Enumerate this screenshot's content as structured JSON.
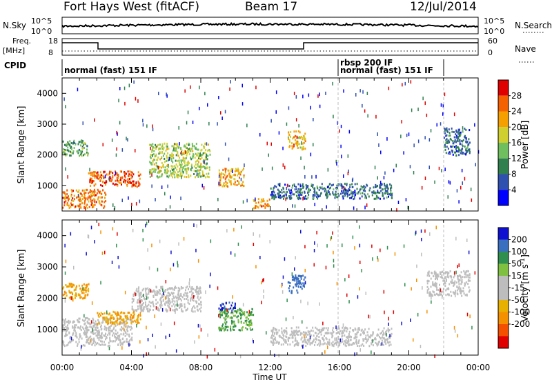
{
  "header": {
    "radar": "Fort Hays West (fitACF)",
    "beam": "Beam 17",
    "date": "12/Jul/2014"
  },
  "top_panels": {
    "nsky_label": "N.Sky",
    "nsky_ticks": [
      "10^5",
      "10^0"
    ],
    "nsearch_label": "N.Search",
    "nsearch_ticks": [
      "10^5",
      "10^0"
    ],
    "freq_label": "Freq.",
    "freq_unit": "[MHz]",
    "freq_ticks": [
      "18",
      "8"
    ],
    "nave_label": "Nave",
    "nave_ticks": [
      "60",
      "0"
    ],
    "cpid_label": "CPID",
    "cpid_segments": [
      "normal (fast) 151 IF",
      "rbsp 200 IF",
      "normal (fast) 151 IF"
    ]
  },
  "colors": {
    "power_scale": [
      "#0000ff",
      "#3050b0",
      "#2f7f4f",
      "#6fbf5f",
      "#cfcf2f",
      "#f5a000",
      "#f56000",
      "#e00000"
    ],
    "velocity_scale": [
      "#e00000",
      "#f55000",
      "#f59000",
      "#e8b000",
      "#bdbdbd",
      "#bdbdbd",
      "#80c040",
      "#2f8f4f",
      "#3a6fc0",
      "#1010d0"
    ]
  },
  "chart_data": [
    {
      "type": "heatmap",
      "name": "power",
      "xlabel": "Time UT",
      "ylabel": "Slant Range [km]",
      "x_ticks": [
        "00:00",
        "04:00",
        "08:00",
        "12:00",
        "16:00",
        "20:00",
        "00:00"
      ],
      "xlim_hours": [
        0,
        24
      ],
      "ylim": [
        180,
        4500
      ],
      "y_ticks": [
        1000,
        2000,
        3000,
        4000
      ],
      "colorbar_label": "Power [dB]",
      "colorbar_ticks": [
        "4",
        "8",
        "12",
        "16",
        "20",
        "24",
        "28"
      ],
      "colorbar_range": [
        0,
        30
      ],
      "features": [
        {
          "t": [
            1.5,
            4.5
          ],
          "range_km": [
            1000,
            1500
          ],
          "value_db": 26
        },
        {
          "t": [
            0.0,
            2.5
          ],
          "range_km": [
            300,
            900
          ],
          "value_db": 24
        },
        {
          "t": [
            0.0,
            1.5
          ],
          "range_km": [
            2000,
            2500
          ],
          "value_db": 12
        },
        {
          "t": [
            5.0,
            8.5
          ],
          "range_km": [
            1300,
            2400
          ],
          "value_db": 16
        },
        {
          "t": [
            9.0,
            10.5
          ],
          "range_km": [
            1000,
            1600
          ],
          "value_db": 22
        },
        {
          "t": [
            11.0,
            12.0
          ],
          "range_km": [
            300,
            600
          ],
          "value_db": 24
        },
        {
          "t": [
            13.0,
            14.0
          ],
          "range_km": [
            2200,
            2800
          ],
          "value_db": 20
        },
        {
          "t": [
            12.0,
            19.0
          ],
          "range_km": [
            600,
            1100
          ],
          "value_db": 8
        },
        {
          "t": [
            22.0,
            23.5
          ],
          "range_km": [
            2000,
            2900
          ],
          "value_db": 8
        }
      ]
    },
    {
      "type": "heatmap",
      "name": "velocity",
      "xlabel": "Time UT",
      "ylabel": "Slant Range [km]",
      "x_ticks": [
        "00:00",
        "04:00",
        "08:00",
        "12:00",
        "16:00",
        "20:00",
        "00:00"
      ],
      "xlim_hours": [
        0,
        24
      ],
      "ylim": [
        180,
        4500
      ],
      "y_ticks": [
        1000,
        2000,
        3000,
        4000
      ],
      "colorbar_label": "Velocity [m s^-1]",
      "colorbar_ticks": [
        "200",
        "100",
        "50",
        "15",
        "-15",
        "-50",
        "-100",
        "-200"
      ],
      "colorbar_range": [
        -250,
        250
      ],
      "features": [
        {
          "t": [
            0.0,
            4.0
          ],
          "range_km": [
            500,
            1400
          ],
          "value_ms": 0
        },
        {
          "t": [
            4.0,
            8.0
          ],
          "range_km": [
            1600,
            2400
          ],
          "value_ms": 0
        },
        {
          "t": [
            2.0,
            4.5
          ],
          "range_km": [
            1200,
            1600
          ],
          "value_ms": -50
        },
        {
          "t": [
            9.0,
            11.0
          ],
          "range_km": [
            1000,
            1700
          ],
          "value_ms": 50
        },
        {
          "t": [
            9.0,
            10.0
          ],
          "range_km": [
            1650,
            1900
          ],
          "value_ms": 200
        },
        {
          "t": [
            12.0,
            19.0
          ],
          "range_km": [
            500,
            1100
          ],
          "value_ms": 0
        },
        {
          "t": [
            0.0,
            1.5
          ],
          "range_km": [
            2000,
            2500
          ],
          "value_ms": -50
        },
        {
          "t": [
            13.0,
            14.0
          ],
          "range_km": [
            2200,
            2800
          ],
          "value_ms": 150
        },
        {
          "t": [
            21.0,
            23.5
          ],
          "range_km": [
            2100,
            2900
          ],
          "value_ms": 0
        }
      ]
    }
  ]
}
